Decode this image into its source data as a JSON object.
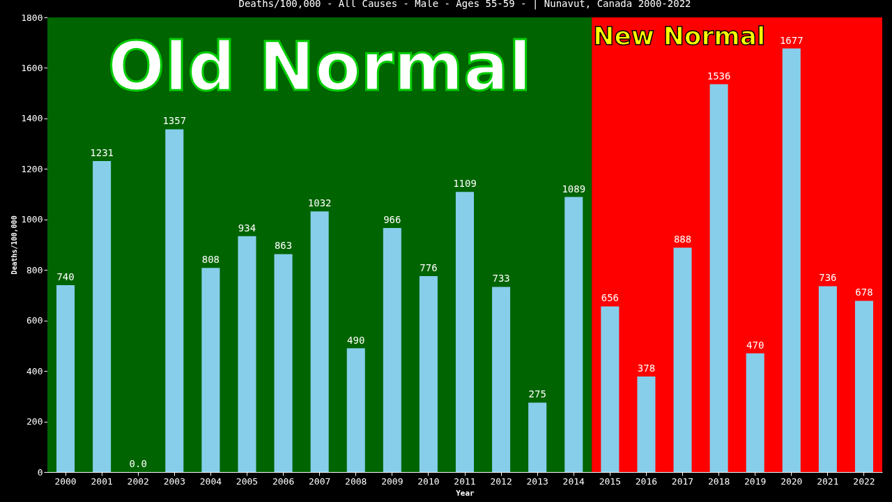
{
  "chart_data": {
    "type": "bar",
    "title": "Deaths/100,000 - All Causes - Male - Ages 55-59 -  | Nunavut, Canada 2000-2022",
    "xlabel": "Year",
    "ylabel": "Deaths/100,000",
    "categories": [
      "2000",
      "2001",
      "2002",
      "2003",
      "2004",
      "2005",
      "2006",
      "2007",
      "2008",
      "2009",
      "2010",
      "2011",
      "2012",
      "2013",
      "2014",
      "2015",
      "2016",
      "2017",
      "2018",
      "2019",
      "2020",
      "2021",
      "2022"
    ],
    "values": [
      740,
      1231,
      0,
      1357,
      808,
      934,
      863,
      1032,
      490,
      966,
      776,
      1109,
      733,
      275,
      1089,
      656,
      378,
      888,
      1536,
      470,
      1677,
      736,
      678
    ],
    "value_labels": [
      "740",
      "1231",
      "0.0",
      "1357",
      "808",
      "934",
      "863",
      "1032",
      "490",
      "966",
      "776",
      "1109",
      "733",
      "275",
      "1089",
      "656",
      "378",
      "888",
      "1536",
      "470",
      "1677",
      "736",
      "678"
    ],
    "color": "#87ceeb",
    "ylim": [
      0,
      1800
    ],
    "yticks": [
      0,
      200,
      400,
      600,
      800,
      1000,
      1200,
      1400,
      1600,
      1800
    ],
    "bands": [
      {
        "axis": "x",
        "from": "2000",
        "to": "2014",
        "label": "Old Normal",
        "color": "#006400"
      },
      {
        "axis": "x",
        "from": "2015",
        "to": "2022",
        "label": "New Normal",
        "color": "#ff0000"
      }
    ],
    "grid": false
  }
}
